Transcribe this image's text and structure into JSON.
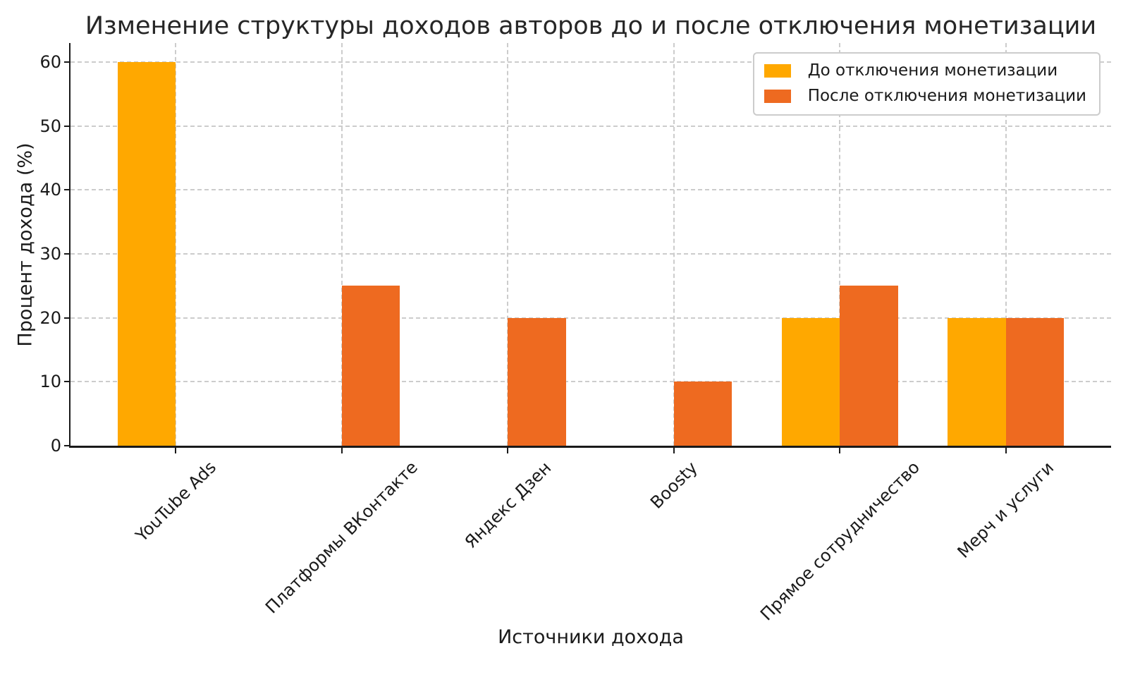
{
  "chart_data": {
    "type": "bar",
    "title": "Изменение структуры доходов авторов до и после отключения монетизации",
    "xlabel": "Источники дохода",
    "ylabel": "Процент дохода (%)",
    "categories": [
      "YouTube Ads",
      "Платформы ВКонтакте",
      "Яндекс Дзен",
      "Boosty",
      "Прямое сотрудничество",
      "Мерч и услуги"
    ],
    "series": [
      {
        "name": "До отключения монетизации",
        "color": "#FFA800",
        "values": [
          60,
          0,
          0,
          0,
          20,
          20
        ]
      },
      {
        "name": "После отключения монетизации",
        "color": "#EE6A20",
        "values": [
          0,
          25,
          20,
          10,
          25,
          20
        ]
      }
    ],
    "ylim": [
      0,
      63
    ],
    "yticks": [
      0,
      10,
      20,
      30,
      40,
      50,
      60
    ],
    "grid": true,
    "grid_style": "dashed",
    "grid_color": "#cccccc",
    "axis_color": "#1a1a1a",
    "background": "#ffffff",
    "legend_position": "upper right",
    "bar_width_fraction": 0.35,
    "xtick_rotation_deg": 45
  }
}
